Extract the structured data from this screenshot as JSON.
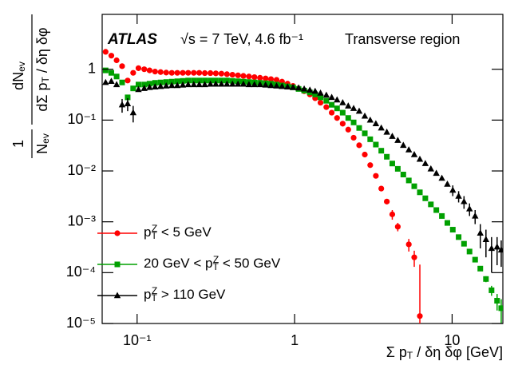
{
  "chart_data": {
    "type": "scatter",
    "annotations": [
      "ATLAS",
      "√s = 7 TeV, 4.6 fb⁻¹",
      "Transverse region"
    ],
    "xlabel": "Σ pT / δη δφ [GeV]",
    "ylabel": {
      "prefix_numerator": "1",
      "prefix_denominator": "Nev",
      "numerator": "dNev",
      "denominator": "dΣ pT / δη δφ"
    },
    "xscale": "log",
    "yscale": "log",
    "xlim": [
      0.06,
      21
    ],
    "ylim": [
      1e-05,
      12
    ],
    "xticks": [
      {
        "value": 0.1,
        "label": "10⁻¹"
      },
      1,
      10
    ],
    "yticks": [
      {
        "value": 1e-05,
        "label": "10⁻⁵"
      },
      {
        "value": 0.0001,
        "label": "10⁻⁴"
      },
      {
        "value": 0.001,
        "label": "10⁻³"
      },
      {
        "value": 0.01,
        "label": "10⁻²"
      },
      {
        "value": 0.1,
        "label": "10⁻¹"
      },
      1
    ],
    "legend": "lower left",
    "x": [
      0.0631,
      0.0686,
      0.0741,
      0.0803,
      0.0871,
      0.0944,
      0.102,
      0.111,
      0.12,
      0.13,
      0.141,
      0.153,
      0.166,
      0.18,
      0.195,
      0.211,
      0.229,
      0.248,
      0.269,
      0.292,
      0.316,
      0.343,
      0.372,
      0.403,
      0.437,
      0.473,
      0.513,
      0.556,
      0.603,
      0.654,
      0.708,
      0.768,
      0.832,
      0.902,
      0.977,
      1.06,
      1.15,
      1.25,
      1.35,
      1.46,
      1.59,
      1.72,
      1.86,
      2.02,
      2.19,
      2.37,
      2.57,
      2.79,
      3.02,
      3.28,
      3.55,
      3.85,
      4.17,
      4.52,
      4.9,
      5.31,
      5.75,
      6.24,
      6.76,
      7.33,
      7.94,
      8.61,
      9.33,
      10.1,
      11.0,
      11.9,
      12.9,
      14.0,
      15.1,
      16.4,
      17.8,
      19.3,
      20.5
    ],
    "series": [
      {
        "name": "pTZ < 5 GeV",
        "color": "#ff0000",
        "marker": "circle",
        "values": [
          2.2,
          1.85,
          1.5,
          1.15,
          0.6,
          0.85,
          1.05,
          1.0,
          0.95,
          0.9,
          0.88,
          0.86,
          0.85,
          0.85,
          0.85,
          0.85,
          0.85,
          0.85,
          0.84,
          0.84,
          0.83,
          0.82,
          0.8,
          0.78,
          0.76,
          0.74,
          0.72,
          0.7,
          0.68,
          0.66,
          0.64,
          0.62,
          0.57,
          0.52,
          0.47,
          0.42,
          0.37,
          0.32,
          0.27,
          0.22,
          0.18,
          0.14,
          0.11,
          0.085,
          0.065,
          0.045,
          0.032,
          0.021,
          0.013,
          0.008,
          0.0045,
          0.0025,
          0.0014,
          0.0008,
          null,
          0.00036,
          0.0002,
          1.4e-05,
          null,
          null,
          null,
          null,
          null,
          null,
          null,
          null,
          null,
          null,
          null,
          null,
          null,
          null,
          null
        ],
        "errors": [
          null,
          null,
          null,
          null,
          null,
          null,
          null,
          null,
          null,
          null,
          null,
          null,
          null,
          null,
          null,
          null,
          null,
          null,
          null,
          null,
          null,
          null,
          null,
          null,
          null,
          null,
          null,
          null,
          null,
          null,
          null,
          null,
          null,
          null,
          null,
          null,
          null,
          null,
          null,
          null,
          null,
          null,
          null,
          null,
          null,
          null,
          null,
          null,
          null,
          null,
          0.0005,
          null,
          0.0003,
          0.00015,
          null,
          0.0001,
          7e-05,
          0.00013,
          null,
          null,
          null,
          null,
          null,
          null,
          null,
          null,
          null,
          null,
          null,
          null,
          null,
          null,
          null
        ]
      },
      {
        "name": "20 GeV < pTZ < 50 GeV",
        "color": "#00a000",
        "marker": "square",
        "values": [
          0.95,
          0.85,
          0.72,
          0.55,
          0.28,
          0.42,
          0.5,
          0.5,
          0.52,
          0.54,
          0.55,
          0.56,
          0.57,
          0.58,
          0.59,
          0.6,
          0.6,
          0.6,
          0.6,
          0.6,
          0.6,
          0.6,
          0.6,
          0.59,
          0.58,
          0.57,
          0.56,
          0.55,
          0.54,
          0.53,
          0.52,
          0.5,
          0.48,
          0.46,
          0.44,
          0.41,
          0.38,
          0.35,
          0.32,
          0.28,
          0.24,
          0.2,
          0.17,
          0.14,
          0.11,
          0.09,
          0.07,
          0.055,
          0.042,
          0.033,
          0.025,
          0.019,
          0.014,
          0.011,
          0.0085,
          0.0065,
          0.005,
          0.0038,
          0.0029,
          0.0022,
          0.0017,
          0.0013,
          0.00095,
          0.0007,
          0.0005,
          0.00037,
          0.00026,
          0.00018,
          0.00012,
          7.5e-05,
          4.5e-05,
          2.8e-05,
          2e-05
        ],
        "errors": [
          null,
          null,
          null,
          null,
          null,
          null,
          null,
          null,
          null,
          null,
          null,
          null,
          null,
          null,
          null,
          null,
          null,
          null,
          null,
          null,
          null,
          null,
          null,
          null,
          null,
          null,
          null,
          null,
          null,
          null,
          null,
          null,
          null,
          null,
          null,
          null,
          null,
          null,
          null,
          null,
          null,
          null,
          null,
          null,
          null,
          null,
          null,
          null,
          null,
          null,
          null,
          null,
          null,
          null,
          null,
          null,
          null,
          null,
          null,
          null,
          null,
          null,
          null,
          null,
          null,
          null,
          null,
          null,
          null,
          1e-05,
          1e-05,
          1e-05,
          1e-05
        ]
      },
      {
        "name": "pTZ >  110 GeV",
        "color": "#000000",
        "marker": "triangle",
        "values": [
          0.55,
          0.58,
          0.5,
          0.2,
          0.21,
          0.14,
          0.4,
          0.42,
          0.44,
          0.45,
          0.46,
          0.47,
          0.48,
          0.48,
          0.49,
          0.5,
          0.5,
          0.5,
          0.5,
          0.51,
          0.51,
          0.51,
          0.51,
          0.51,
          0.51,
          0.51,
          0.5,
          0.5,
          0.5,
          0.49,
          0.48,
          0.47,
          0.46,
          0.45,
          0.44,
          0.43,
          0.41,
          0.39,
          0.37,
          0.34,
          0.31,
          0.28,
          0.25,
          0.22,
          0.19,
          0.17,
          0.15,
          0.12,
          0.1,
          0.085,
          0.07,
          0.058,
          0.048,
          0.04,
          0.032,
          0.026,
          0.021,
          0.017,
          0.014,
          0.011,
          0.009,
          0.0072,
          0.0055,
          0.0042,
          0.0032,
          0.0025,
          0.0018,
          0.0013,
          0.0006,
          0.00045,
          0.0003,
          0.00032,
          0.00028
        ],
        "errors": [
          null,
          null,
          null,
          0.06,
          0.06,
          0.05,
          null,
          null,
          null,
          null,
          null,
          null,
          null,
          null,
          null,
          null,
          null,
          null,
          null,
          null,
          null,
          null,
          null,
          null,
          null,
          null,
          null,
          null,
          null,
          null,
          null,
          null,
          null,
          null,
          null,
          null,
          null,
          null,
          null,
          null,
          null,
          null,
          null,
          null,
          null,
          null,
          null,
          null,
          null,
          null,
          null,
          null,
          null,
          null,
          null,
          null,
          null,
          null,
          null,
          null,
          null,
          null,
          null,
          0.001,
          0.0008,
          0.0007,
          0.0005,
          0.0004,
          0.0003,
          0.00025,
          0.0002,
          0.00018,
          0.00015
        ]
      }
    ]
  }
}
